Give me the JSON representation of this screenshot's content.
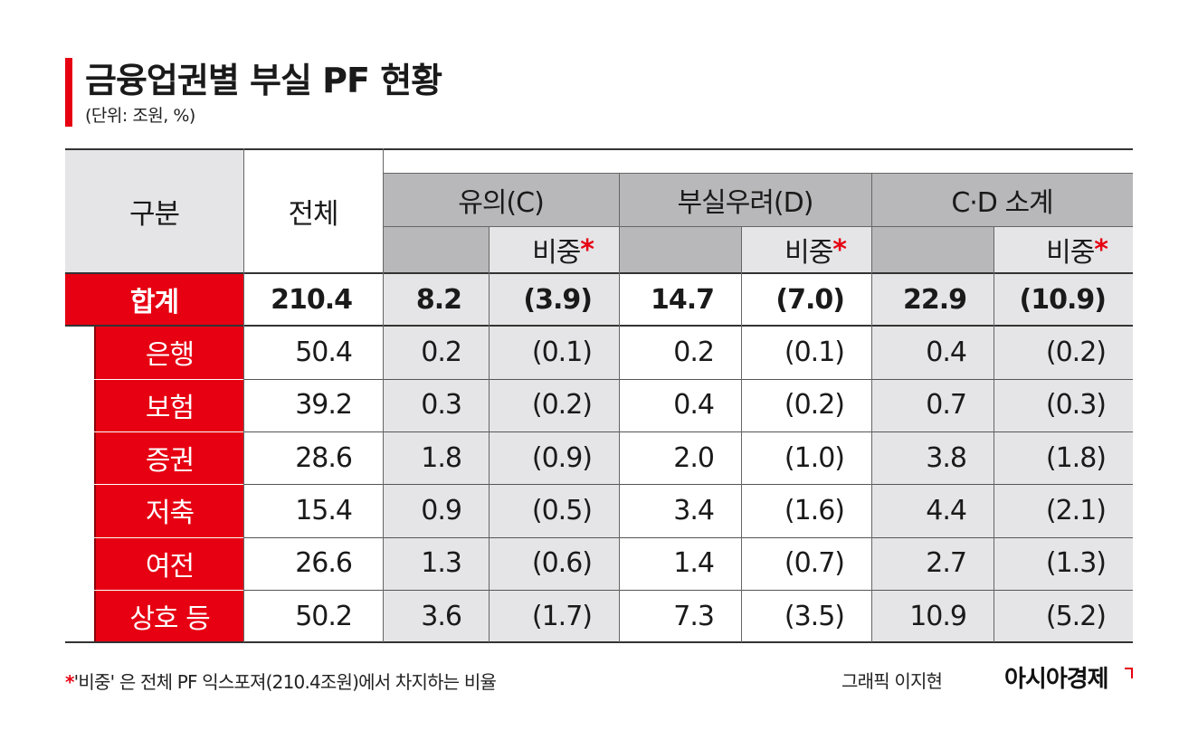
{
  "title": "금융업권별 부실 PF 현황",
  "unit": "(단위: 조원, %)",
  "table": {
    "headers": {
      "category": "구분",
      "total": "전체",
      "c": "유의(C)",
      "d": "부실우려(D)",
      "cd": "C·D 소계",
      "share": "비중",
      "share_mark": "*"
    },
    "rows": [
      {
        "label": "합계",
        "total": "210.4",
        "c": "8.2",
        "c_share": "(3.9)",
        "d": "14.7",
        "d_share": "(7.0)",
        "cd": "22.9",
        "cd_share": "(10.9)"
      },
      {
        "label": "은행",
        "total": "50.4",
        "c": "0.2",
        "c_share": "(0.1)",
        "d": "0.2",
        "d_share": "(0.1)",
        "cd": "0.4",
        "cd_share": "(0.2)"
      },
      {
        "label": "보험",
        "total": "39.2",
        "c": "0.3",
        "c_share": "(0.2)",
        "d": "0.4",
        "d_share": "(0.2)",
        "cd": "0.7",
        "cd_share": "(0.3)"
      },
      {
        "label": "증권",
        "total": "28.6",
        "c": "1.8",
        "c_share": "(0.9)",
        "d": "2.0",
        "d_share": "(1.0)",
        "cd": "3.8",
        "cd_share": "(1.8)"
      },
      {
        "label": "저축",
        "total": "15.4",
        "c": "0.9",
        "c_share": "(0.5)",
        "d": "3.4",
        "d_share": "(1.6)",
        "cd": "4.4",
        "cd_share": "(2.1)"
      },
      {
        "label": "여전",
        "total": "26.6",
        "c": "1.3",
        "c_share": "(0.6)",
        "d": "1.4",
        "d_share": "(0.7)",
        "cd": "2.7",
        "cd_share": "(1.3)"
      },
      {
        "label": "상호 등",
        "total": "50.2",
        "c": "3.6",
        "c_share": "(1.7)",
        "d": "7.3",
        "d_share": "(3.5)",
        "cd": "10.9",
        "cd_share": "(5.2)"
      }
    ]
  },
  "chart_data": {
    "type": "table",
    "title": "금융업권별 부실 PF 현황",
    "unit": "(단위: 조원, %)",
    "columns": [
      "구분",
      "전체",
      "유의(C)",
      "유의(C) 비중",
      "부실우려(D)",
      "부실우려(D) 비중",
      "C·D 소계",
      "C·D 소계 비중"
    ],
    "categories": [
      "합계",
      "은행",
      "보험",
      "증권",
      "저축",
      "여전",
      "상호 등"
    ],
    "series": [
      {
        "name": "전체",
        "values": [
          210.4,
          50.4,
          39.2,
          28.6,
          15.4,
          26.6,
          50.2
        ]
      },
      {
        "name": "유의(C)",
        "values": [
          8.2,
          0.2,
          0.3,
          1.8,
          0.9,
          1.3,
          3.6
        ]
      },
      {
        "name": "유의(C) 비중",
        "values": [
          3.9,
          0.1,
          0.2,
          0.9,
          0.5,
          0.6,
          1.7
        ]
      },
      {
        "name": "부실우려(D)",
        "values": [
          14.7,
          0.2,
          0.4,
          2.0,
          3.4,
          1.4,
          7.3
        ]
      },
      {
        "name": "부실우려(D) 비중",
        "values": [
          7.0,
          0.1,
          0.2,
          1.0,
          1.6,
          0.7,
          3.5
        ]
      },
      {
        "name": "C·D 소계",
        "values": [
          22.9,
          0.4,
          0.7,
          3.8,
          4.4,
          2.7,
          10.9
        ]
      },
      {
        "name": "C·D 소계 비중",
        "values": [
          10.9,
          0.2,
          0.3,
          1.8,
          2.1,
          1.3,
          5.2
        ]
      }
    ]
  },
  "footnote": {
    "mark": "*",
    "text": "'비중' 은 전체 PF 익스포져(210.4조원)에서 차지하는 비율"
  },
  "credit": "그래픽 이지현",
  "brand": "아시아경제",
  "colors": {
    "accent": "#e60012",
    "header_bg": "#e5e5e7",
    "subheader_bg": "#b8b8ba"
  }
}
